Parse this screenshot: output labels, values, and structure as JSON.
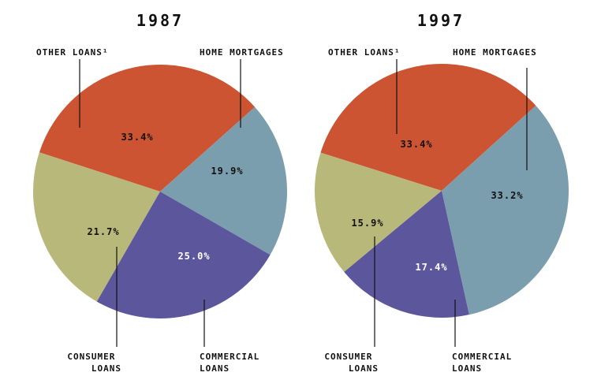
{
  "chart_data": [
    {
      "type": "pie",
      "title": "1987",
      "labels": [
        "OTHER LOANS¹",
        "HOME MORTGAGES",
        "CONSUMER LOANS",
        "COMMERCIAL LOANS"
      ],
      "values": [
        33.4,
        19.9,
        21.7,
        25.0
      ],
      "value_labels": [
        "33.4%",
        "19.9%",
        "21.7%",
        "25.0%"
      ]
    },
    {
      "type": "pie",
      "title": "1997",
      "labels": [
        "OTHER LOANS¹",
        "HOME MORTGAGES",
        "CONSUMER LOANS",
        "COMMERCIAL LOANS"
      ],
      "values": [
        33.4,
        33.2,
        15.9,
        17.4
      ],
      "value_labels": [
        "33.4%",
        "33.2%",
        "15.9%",
        "17.4%"
      ]
    }
  ],
  "colors": {
    "other_loans": "#cc5432",
    "home_mortgages": "#7b9eae",
    "consumer_loans": "#b8b87a",
    "commercial_loans": "#5c569c"
  }
}
